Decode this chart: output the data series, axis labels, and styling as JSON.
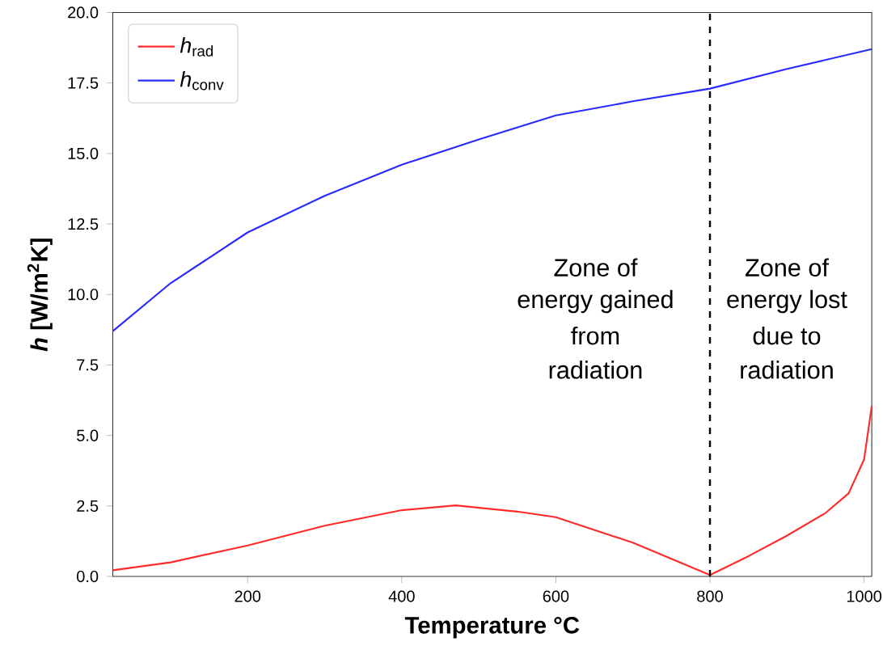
{
  "chart_data": {
    "type": "line",
    "xlabel": "Temperature °C",
    "ylabel": "*h* [W/m$^{2}$K]",
    "x": [
      25,
      100,
      200,
      300,
      400,
      470,
      550,
      600,
      700,
      800,
      850,
      900,
      950,
      980,
      1000,
      1010
    ],
    "series": [
      {
        "name": "*h*$_{rad}$",
        "color": "#ff2a2a",
        "values": [
          0.22,
          0.5,
          1.1,
          1.8,
          2.35,
          2.52,
          2.3,
          2.1,
          1.2,
          0.05,
          0.72,
          1.45,
          2.25,
          2.95,
          4.15,
          6.05
        ]
      },
      {
        "name": "*h*$_{conv}$",
        "color": "#2a2aff",
        "x": [
          25,
          100,
          200,
          300,
          400,
          500,
          600,
          700,
          800,
          900,
          1010
        ],
        "values": [
          8.7,
          10.4,
          12.2,
          13.5,
          14.6,
          15.5,
          16.35,
          16.85,
          17.3,
          18.0,
          18.7
        ]
      }
    ],
    "xlim": [
      25,
      1010
    ],
    "ylim": [
      0,
      20
    ],
    "xticks": [
      200,
      400,
      600,
      800,
      1000
    ],
    "yticks": [
      {
        "value": 0,
        "label": "0.0"
      },
      {
        "value": 2.5,
        "label": "2.5"
      },
      {
        "value": 5,
        "label": "5.0"
      },
      {
        "value": 7.5,
        "label": "7.5"
      },
      {
        "value": 10,
        "label": "10.0"
      },
      {
        "value": 12.5,
        "label": "12.5"
      },
      {
        "value": 15,
        "label": "15.0"
      },
      {
        "value": 17.5,
        "label": "17.5"
      },
      {
        "value": 20,
        "label": "20.0"
      }
    ],
    "ref_lines": [
      {
        "axis": "x",
        "value": 800,
        "color": "#000000",
        "line_style": "dashed"
      }
    ],
    "annotations": [
      "Zone of",
      "energy gained",
      "from",
      "radiation",
      "Zone of",
      "energy lost",
      "due to",
      "radiation"
    ],
    "legend": "top left",
    "line_style": "solid",
    "marker": "none"
  }
}
